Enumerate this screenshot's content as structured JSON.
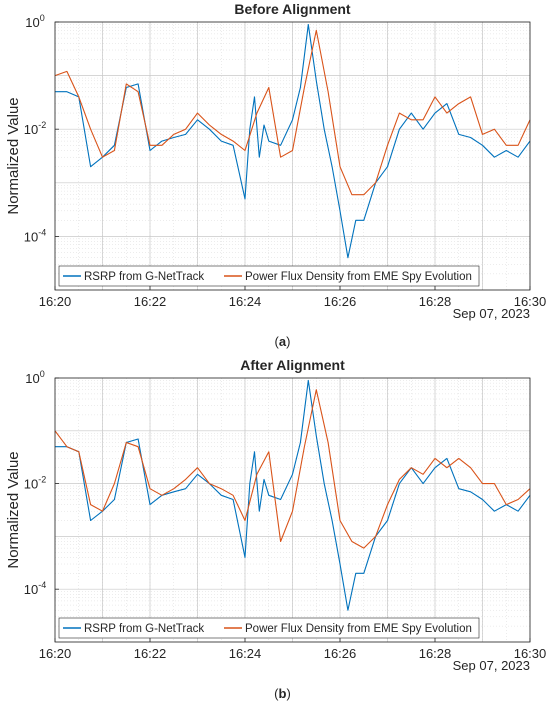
{
  "colors": {
    "rsrp": "#0072BD",
    "pfd": "#D95319",
    "grid": "#d9d9d9",
    "axis": "#262626"
  },
  "chart_data": [
    {
      "type": "line",
      "title": "Before Alignment",
      "panel_label": "a",
      "ylabel": "Normalized Value",
      "xlabel": "",
      "x_date_label": "Sep 07, 2023",
      "yscale": "log",
      "ylim": [
        1e-05,
        1
      ],
      "xlim": [
        "16:20",
        "16:30"
      ],
      "x_ticks": [
        "16:20",
        "16:22",
        "16:24",
        "16:26",
        "16:28",
        "16:30"
      ],
      "y_ticks": [
        {
          "value": 0.0001,
          "base": "10",
          "exp": "-4"
        },
        {
          "value": 0.01,
          "base": "10",
          "exp": "-2"
        },
        {
          "value": 1,
          "base": "10",
          "exp": "0"
        }
      ],
      "grid": true,
      "minor_grid": true,
      "legend": {
        "placement": "bottom-left",
        "orientation": "horizontal"
      },
      "series": [
        {
          "name": "RSRP from G-NetTrack",
          "color": "#0072BD",
          "x": [
            "16:20:00",
            "16:20:15",
            "16:20:30",
            "16:20:45",
            "16:21:00",
            "16:21:15",
            "16:21:30",
            "16:21:45",
            "16:22:00",
            "16:22:15",
            "16:22:30",
            "16:22:45",
            "16:23:00",
            "16:23:15",
            "16:23:30",
            "16:23:45",
            "16:24:00",
            "16:24:06",
            "16:24:12",
            "16:24:18",
            "16:24:24",
            "16:24:30",
            "16:24:45",
            "16:25:00",
            "16:25:10",
            "16:25:20",
            "16:25:30",
            "16:25:40",
            "16:25:50",
            "16:26:00",
            "16:26:10",
            "16:26:20",
            "16:26:30",
            "16:26:45",
            "16:27:00",
            "16:27:15",
            "16:27:30",
            "16:27:45",
            "16:28:00",
            "16:28:15",
            "16:28:30",
            "16:28:45",
            "16:29:00",
            "16:29:15",
            "16:29:30",
            "16:29:45",
            "16:30:00"
          ],
          "values": [
            0.05,
            0.05,
            0.04,
            0.002,
            0.003,
            0.005,
            0.06,
            0.07,
            0.004,
            0.006,
            0.007,
            0.008,
            0.015,
            0.01,
            0.006,
            0.005,
            0.0005,
            0.01,
            0.04,
            0.003,
            0.012,
            0.006,
            0.005,
            0.015,
            0.06,
            0.9,
            0.08,
            0.01,
            0.002,
            0.0003,
            4e-05,
            0.0002,
            0.0002,
            0.001,
            0.002,
            0.01,
            0.02,
            0.01,
            0.02,
            0.03,
            0.008,
            0.007,
            0.005,
            0.003,
            0.004,
            0.003,
            0.006
          ]
        },
        {
          "name": "Power Flux Density from EME Spy Evolution",
          "color": "#D95319",
          "x": [
            "16:20:00",
            "16:20:15",
            "16:20:30",
            "16:20:45",
            "16:21:00",
            "16:21:15",
            "16:21:30",
            "16:21:45",
            "16:22:00",
            "16:22:15",
            "16:22:30",
            "16:22:45",
            "16:23:00",
            "16:23:15",
            "16:23:30",
            "16:23:45",
            "16:24:00",
            "16:24:15",
            "16:24:30",
            "16:24:45",
            "16:25:00",
            "16:25:15",
            "16:25:30",
            "16:25:45",
            "16:26:00",
            "16:26:15",
            "16:26:30",
            "16:26:45",
            "16:27:00",
            "16:27:15",
            "16:27:30",
            "16:27:45",
            "16:28:00",
            "16:28:15",
            "16:28:30",
            "16:28:45",
            "16:29:00",
            "16:29:15",
            "16:29:30",
            "16:29:45",
            "16:30:00"
          ],
          "values": [
            0.1,
            0.12,
            0.04,
            0.01,
            0.003,
            0.004,
            0.07,
            0.05,
            0.005,
            0.005,
            0.008,
            0.01,
            0.02,
            0.012,
            0.008,
            0.006,
            0.004,
            0.02,
            0.06,
            0.003,
            0.004,
            0.06,
            0.7,
            0.05,
            0.002,
            0.0006,
            0.0006,
            0.001,
            0.005,
            0.02,
            0.015,
            0.015,
            0.04,
            0.02,
            0.03,
            0.04,
            0.008,
            0.01,
            0.005,
            0.005,
            0.015
          ]
        }
      ]
    },
    {
      "type": "line",
      "title": "After Alignment",
      "panel_label": "b",
      "ylabel": "Normalized Value",
      "xlabel": "",
      "x_date_label": "Sep 07, 2023",
      "yscale": "log",
      "ylim": [
        1e-05,
        1
      ],
      "xlim": [
        "16:20",
        "16:30"
      ],
      "x_ticks": [
        "16:20",
        "16:22",
        "16:24",
        "16:26",
        "16:28",
        "16:30"
      ],
      "y_ticks": [
        {
          "value": 0.0001,
          "base": "10",
          "exp": "-4"
        },
        {
          "value": 0.01,
          "base": "10",
          "exp": "-2"
        },
        {
          "value": 1,
          "base": "10",
          "exp": "0"
        }
      ],
      "grid": true,
      "minor_grid": true,
      "legend": {
        "placement": "bottom-left",
        "orientation": "horizontal"
      },
      "series": [
        {
          "name": "RSRP from G-NetTrack",
          "color": "#0072BD",
          "x": [
            "16:20:00",
            "16:20:15",
            "16:20:30",
            "16:20:45",
            "16:21:00",
            "16:21:15",
            "16:21:30",
            "16:21:45",
            "16:22:00",
            "16:22:15",
            "16:22:30",
            "16:22:45",
            "16:23:00",
            "16:23:15",
            "16:23:30",
            "16:23:45",
            "16:24:00",
            "16:24:06",
            "16:24:12",
            "16:24:18",
            "16:24:24",
            "16:24:30",
            "16:24:45",
            "16:25:00",
            "16:25:10",
            "16:25:20",
            "16:25:30",
            "16:25:40",
            "16:25:50",
            "16:26:00",
            "16:26:10",
            "16:26:20",
            "16:26:30",
            "16:26:45",
            "16:27:00",
            "16:27:15",
            "16:27:30",
            "16:27:45",
            "16:28:00",
            "16:28:15",
            "16:28:30",
            "16:28:45",
            "16:29:00",
            "16:29:15",
            "16:29:30",
            "16:29:45",
            "16:30:00"
          ],
          "values": [
            0.05,
            0.05,
            0.04,
            0.002,
            0.003,
            0.005,
            0.06,
            0.07,
            0.004,
            0.006,
            0.007,
            0.008,
            0.015,
            0.01,
            0.006,
            0.005,
            0.0004,
            0.01,
            0.04,
            0.003,
            0.012,
            0.006,
            0.005,
            0.015,
            0.06,
            0.9,
            0.08,
            0.01,
            0.002,
            0.0003,
            4e-05,
            0.0002,
            0.0002,
            0.001,
            0.002,
            0.01,
            0.02,
            0.01,
            0.02,
            0.03,
            0.008,
            0.007,
            0.005,
            0.003,
            0.004,
            0.003,
            0.006
          ]
        },
        {
          "name": "Power Flux Density from EME Spy Evolution",
          "color": "#D95319",
          "x": [
            "16:20:00",
            "16:20:15",
            "16:20:30",
            "16:20:45",
            "16:21:00",
            "16:21:15",
            "16:21:30",
            "16:21:45",
            "16:22:00",
            "16:22:15",
            "16:22:30",
            "16:22:45",
            "16:23:00",
            "16:23:15",
            "16:23:30",
            "16:23:45",
            "16:24:00",
            "16:24:15",
            "16:24:30",
            "16:24:45",
            "16:25:00",
            "16:25:15",
            "16:25:30",
            "16:25:45",
            "16:26:00",
            "16:26:15",
            "16:26:30",
            "16:26:45",
            "16:27:00",
            "16:27:15",
            "16:27:30",
            "16:27:45",
            "16:28:00",
            "16:28:15",
            "16:28:30",
            "16:28:45",
            "16:29:00",
            "16:29:15",
            "16:29:30",
            "16:29:45",
            "16:30:00"
          ],
          "values": [
            0.1,
            0.05,
            0.04,
            0.004,
            0.003,
            0.01,
            0.06,
            0.05,
            0.008,
            0.006,
            0.008,
            0.012,
            0.02,
            0.01,
            0.008,
            0.006,
            0.002,
            0.015,
            0.04,
            0.0008,
            0.003,
            0.05,
            0.6,
            0.06,
            0.002,
            0.0008,
            0.0006,
            0.001,
            0.004,
            0.012,
            0.02,
            0.015,
            0.03,
            0.02,
            0.03,
            0.02,
            0.01,
            0.01,
            0.004,
            0.005,
            0.008
          ]
        }
      ]
    }
  ]
}
